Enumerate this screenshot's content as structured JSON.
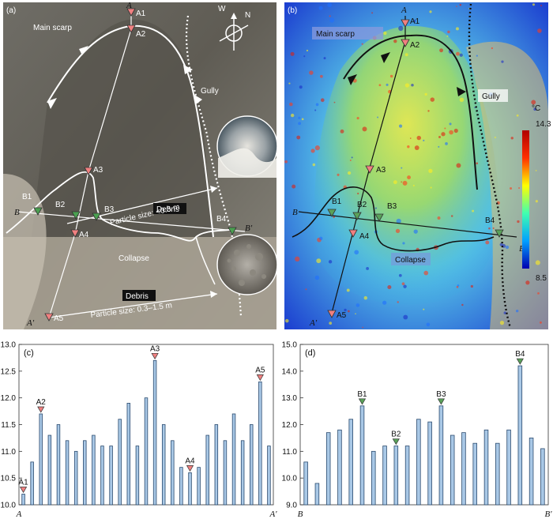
{
  "photo_panel": {
    "label": "(a)",
    "main_scarp": "Main scarp",
    "gully": "Gully",
    "collapse": "Collapse",
    "debris1_title": "Debris",
    "debris1_size": "Particle size: <0.3 m",
    "debris2_title": "Debris",
    "debris2_size": "Particle size: 0.3–1.5 m",
    "compass_n": "N",
    "compass_w": "W",
    "profile_points": [
      "A",
      "A1",
      "A2",
      "A3",
      "A4",
      "A5",
      "A'"
    ],
    "cross_points": [
      "B",
      "B1",
      "B2",
      "B3",
      "B4",
      "B'"
    ]
  },
  "thermal_panel": {
    "label": "(b)",
    "main_scarp": "Main scarp",
    "gully": "Gully",
    "collapse": "Collapse",
    "unit": "°C",
    "scale_max": "14.3",
    "scale_min": "8.5",
    "profile_points": [
      "A",
      "A1",
      "A2",
      "A3",
      "A4",
      "A5",
      "A'"
    ],
    "cross_points": [
      "B",
      "B1",
      "B2",
      "B3",
      "B4",
      "B'"
    ],
    "colors": {
      "scale_top": "#b00000",
      "scale_mid": "#ffff00",
      "scale_low": "#00c0ff",
      "scale_bottom": "#0000b0"
    }
  },
  "chart_data": [
    {
      "type": "bar",
      "label": "(c)",
      "title": "",
      "xlabel_start": "A",
      "xlabel_end": "A'",
      "ylim": [
        10.0,
        13.0
      ],
      "yticks": [
        "10.0",
        "10.5",
        "11.0",
        "11.5",
        "12.0",
        "12.5",
        "13.0"
      ],
      "values": [
        10.2,
        10.8,
        11.7,
        11.3,
        11.5,
        11.2,
        11.0,
        11.2,
        11.3,
        11.1,
        11.1,
        11.6,
        11.9,
        11.1,
        12.0,
        12.7,
        11.5,
        11.2,
        10.7,
        10.6,
        10.7,
        11.3,
        11.5,
        11.2,
        11.7,
        11.2,
        11.5,
        12.3,
        11.1
      ],
      "markers": [
        {
          "name": "A1",
          "index": 0
        },
        {
          "name": "A2",
          "index": 2
        },
        {
          "name": "A3",
          "index": 15
        },
        {
          "name": "A4",
          "index": 19
        },
        {
          "name": "A5",
          "index": 27
        }
      ],
      "colors": {
        "bar": "#a9c8e6",
        "bar_edge": "#2a4a6e",
        "marker": "#f08080"
      }
    },
    {
      "type": "bar",
      "label": "(d)",
      "title": "",
      "xlabel_start": "B",
      "xlabel_end": "B'",
      "ylim": [
        9.0,
        15.0
      ],
      "yticks": [
        "9.0",
        "10.0",
        "11.0",
        "12.0",
        "13.0",
        "14.0",
        "15.0"
      ],
      "values": [
        10.6,
        9.8,
        11.7,
        11.8,
        12.2,
        12.7,
        11.0,
        11.2,
        11.2,
        11.2,
        12.2,
        12.1,
        12.7,
        11.6,
        11.7,
        11.3,
        11.8,
        11.3,
        11.8,
        14.2,
        11.5,
        11.1
      ],
      "markers": [
        {
          "name": "B1",
          "index": 5
        },
        {
          "name": "B2",
          "index": 8
        },
        {
          "name": "B3",
          "index": 12
        },
        {
          "name": "B4",
          "index": 19
        }
      ],
      "colors": {
        "bar": "#a9c8e6",
        "bar_edge": "#2a4a6e",
        "marker": "#5aa25a"
      }
    }
  ]
}
